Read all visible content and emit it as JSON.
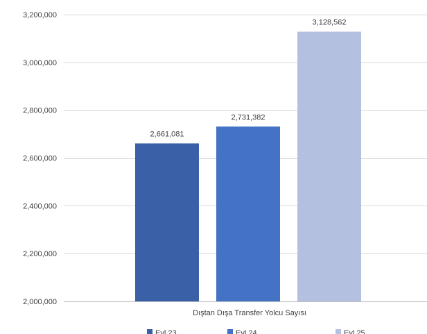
{
  "chart_data": {
    "type": "bar",
    "categories": [
      "Dıştan Dışa Transfer Yolcu Sayısı"
    ],
    "series": [
      {
        "name": "Eyl.23",
        "values": [
          2661081
        ],
        "value_labels": [
          "2,661,081"
        ],
        "color": "#3a60a8"
      },
      {
        "name": "Eyl.24",
        "values": [
          2731382
        ],
        "value_labels": [
          "2,731,382"
        ],
        "color": "#4472c4"
      },
      {
        "name": "Eyl.25",
        "values": [
          3128562
        ],
        "value_labels": [
          "3,128,562"
        ],
        "color": "#b4c0e0"
      }
    ],
    "title": "",
    "xlabel": "",
    "ylabel": "",
    "ylim": [
      2000000,
      3200000
    ],
    "yticks": [
      2000000,
      2200000,
      2400000,
      2600000,
      2800000,
      3000000,
      3200000
    ],
    "ytick_labels": [
      "2,000,000",
      "2,200,000",
      "2,400,000",
      "2,600,000",
      "2,800,000",
      "3,000,000",
      "3,200,000"
    ],
    "grid": true,
    "legend_position": "bottom"
  }
}
